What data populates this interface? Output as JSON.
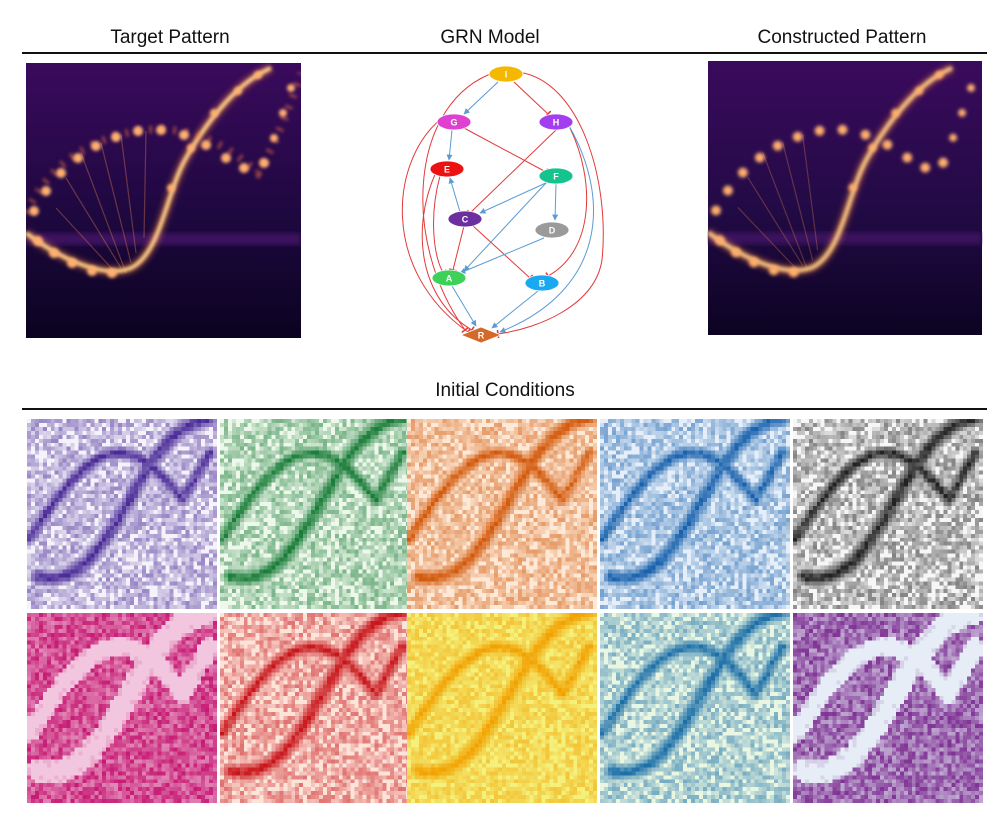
{
  "headers": {
    "target": "Target Pattern",
    "grn": "GRN Model",
    "constructed": "Constructed Pattern",
    "initial": "Initial Conditions"
  },
  "grn": {
    "nodes": [
      {
        "id": "I",
        "label": "I",
        "color": "#f5b800"
      },
      {
        "id": "G",
        "label": "G",
        "color": "#e040d0"
      },
      {
        "id": "H",
        "label": "H",
        "color": "#a23ef0"
      },
      {
        "id": "E",
        "label": "E",
        "color": "#ee1111"
      },
      {
        "id": "F",
        "label": "F",
        "color": "#14c38e"
      },
      {
        "id": "C",
        "label": "C",
        "color": "#6b2fa0"
      },
      {
        "id": "D",
        "label": "D",
        "color": "#9a9a9a"
      },
      {
        "id": "A",
        "label": "A",
        "color": "#3dd15a"
      },
      {
        "id": "B",
        "label": "B",
        "color": "#1aa8f0"
      },
      {
        "id": "R",
        "label": "R",
        "color": "#d4692a"
      }
    ],
    "edge_colors": {
      "activation": "#5a9bd5",
      "inhibition": "#e23a3a"
    }
  },
  "initial_conditions": [
    {
      "colormap": "purples",
      "light": "#f4f2fa",
      "dark": "#4a2b97"
    },
    {
      "colormap": "greens",
      "light": "#eef8ea",
      "dark": "#1b7d3a"
    },
    {
      "colormap": "oranges",
      "light": "#fde9d6",
      "dark": "#d35a0d"
    },
    {
      "colormap": "blues",
      "light": "#e6eff9",
      "dark": "#1a62ad"
    },
    {
      "colormap": "greys",
      "light": "#f6f6f6",
      "dark": "#222222"
    },
    {
      "colormap": "pinks",
      "light": "#f2c6de",
      "dark": "#c4126e"
    },
    {
      "colormap": "reds",
      "light": "#fde4d9",
      "dark": "#c8151b"
    },
    {
      "colormap": "yellow-orange",
      "light": "#f4f07a",
      "dark": "#f2a100"
    },
    {
      "colormap": "green-blue",
      "light": "#e8f6e2",
      "dark": "#1c6fa8"
    },
    {
      "colormap": "blue-purple",
      "light": "#e6edf6",
      "dark": "#7a2a8f"
    }
  ]
}
